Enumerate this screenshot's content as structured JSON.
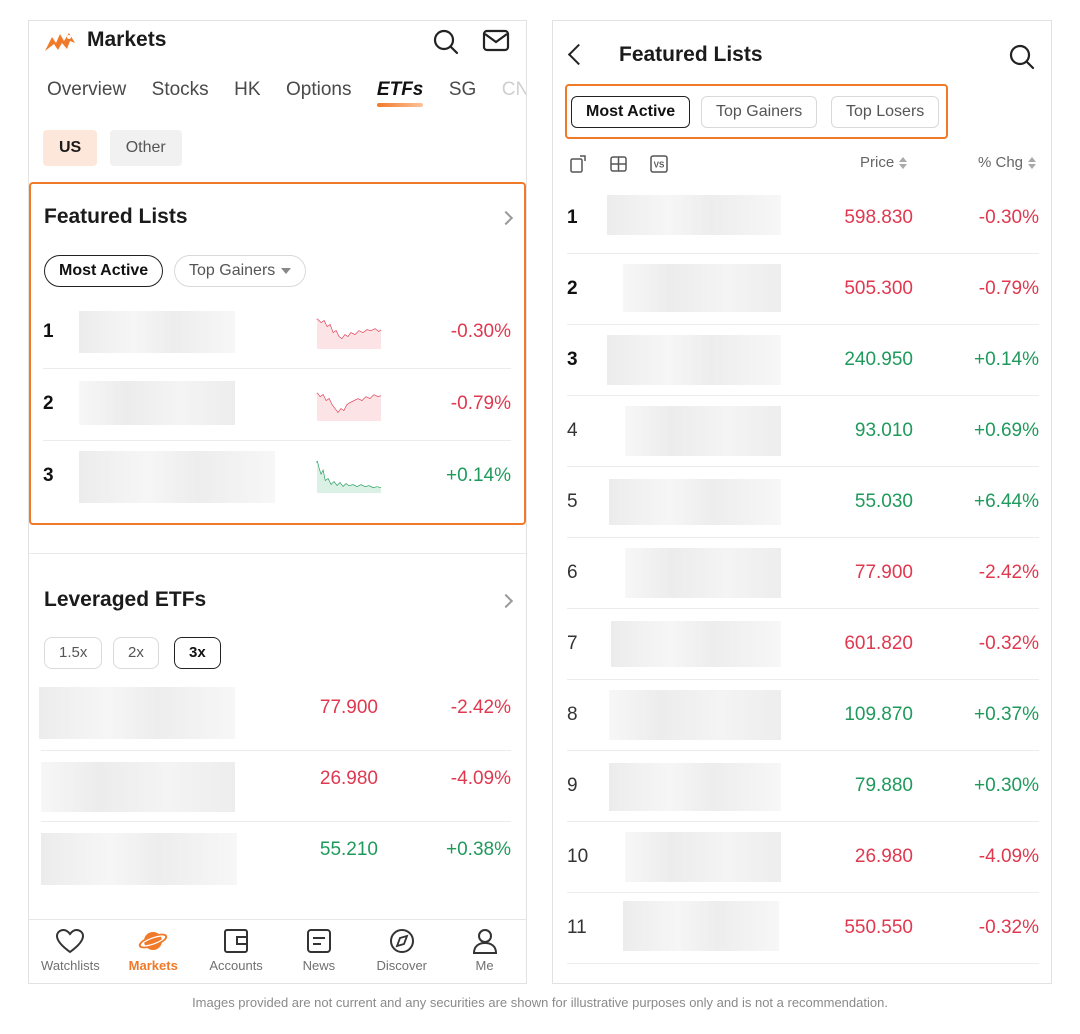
{
  "left": {
    "header": {
      "title": "Markets"
    },
    "tabs": [
      {
        "label": "Overview"
      },
      {
        "label": "Stocks"
      },
      {
        "label": "HK"
      },
      {
        "label": "Options"
      },
      {
        "label": "ETFs",
        "active": true
      },
      {
        "label": "SG"
      },
      {
        "label": "CN"
      }
    ],
    "region_chips": {
      "us": "US",
      "other": "Other"
    },
    "featured": {
      "title": "Featured Lists",
      "filters": {
        "most_active": "Most Active",
        "top_gainers": "Top Gainers"
      },
      "rows": [
        {
          "rank": "1",
          "change": "-0.30%"
        },
        {
          "rank": "2",
          "change": "-0.79%"
        },
        {
          "rank": "3",
          "change": "+0.14%"
        }
      ]
    },
    "leveraged": {
      "title": "Leveraged ETFs",
      "chips": [
        "1.5x",
        "2x",
        "3x"
      ],
      "rows": [
        {
          "price": "77.900",
          "change": "-2.42%"
        },
        {
          "price": "26.980",
          "change": "-4.09%"
        },
        {
          "price": "55.210",
          "change": "+0.38%"
        }
      ]
    },
    "bottom_nav": [
      {
        "label": "Watchlists",
        "icon": "heart-icon"
      },
      {
        "label": "Markets",
        "icon": "planet-icon",
        "active": true
      },
      {
        "label": "Accounts",
        "icon": "wallet-icon"
      },
      {
        "label": "News",
        "icon": "document-icon"
      },
      {
        "label": "Discover",
        "icon": "compass-icon"
      },
      {
        "label": "Me",
        "icon": "person-icon"
      }
    ]
  },
  "right": {
    "header": {
      "title": "Featured Lists"
    },
    "tabs": {
      "most_active": "Most Active",
      "top_gainers": "Top Gainers",
      "top_losers": "Top Losers"
    },
    "columns": {
      "price": "Price",
      "change": "% Chg"
    },
    "toolbar_icons": [
      "rotate-icon",
      "grid-icon",
      "compare-icon"
    ],
    "compare_label": "VS",
    "rows": [
      {
        "rank": "1",
        "price": "598.830",
        "change": "-0.30%"
      },
      {
        "rank": "2",
        "price": "505.300",
        "change": "-0.79%"
      },
      {
        "rank": "3",
        "price": "240.950",
        "change": "+0.14%"
      },
      {
        "rank": "4",
        "price": "93.010",
        "change": "+0.69%"
      },
      {
        "rank": "5",
        "price": "55.030",
        "change": "+6.44%"
      },
      {
        "rank": "6",
        "price": "77.900",
        "change": "-2.42%"
      },
      {
        "rank": "7",
        "price": "601.820",
        "change": "-0.32%"
      },
      {
        "rank": "8",
        "price": "109.870",
        "change": "+0.37%"
      },
      {
        "rank": "9",
        "price": "79.880",
        "change": "+0.30%"
      },
      {
        "rank": "10",
        "price": "26.980",
        "change": "-4.09%"
      },
      {
        "rank": "11",
        "price": "550.550",
        "change": "-0.32%"
      }
    ]
  },
  "colors": {
    "accent": "#f07a2a",
    "up": "#1f9a5c",
    "down": "#e0384f"
  },
  "disclaimer": "Images provided are not current and any securities are shown for illustrative purposes only and is not a recommendation."
}
